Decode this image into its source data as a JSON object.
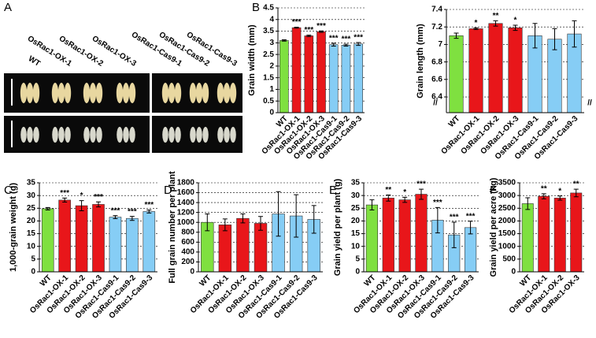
{
  "photo": {
    "panel": "A",
    "genotypes": [
      "WT",
      "OsRac1-OX-1",
      "OsRac1-OX-2",
      "OsRac1-OX-3",
      "OsRac1-Cas9-1",
      "OsRac1-Cas9-2",
      "OsRac1-Cas9-3"
    ]
  },
  "chart_data": [
    {
      "type": "bar",
      "panel": "B",
      "ylabel": "Grain width (mm)",
      "categories": [
        "WT",
        "OsRac1-OX-1",
        "OsRac1-OX-2",
        "OsRac1-OX-3",
        "OsRac1-Cas9-1",
        "OsRac1-Cas9-2",
        "OsRac1-Cas9-3"
      ],
      "values": [
        3.1,
        3.65,
        3.3,
        3.48,
        2.92,
        2.9,
        2.95
      ],
      "errors": [
        0.03,
        0.02,
        0.03,
        0.03,
        0.06,
        0.04,
        0.06
      ],
      "colors": [
        "#7fe040",
        "#e8161a",
        "#e8161a",
        "#e8161a",
        "#86cdf5",
        "#86cdf5",
        "#86cdf5"
      ],
      "annotations": [
        null,
        "***",
        "***",
        "***",
        "***",
        "***",
        "***"
      ],
      "ylim": [
        0,
        4.5
      ],
      "yticks": [
        0,
        0.5,
        1,
        1.5,
        2,
        2.5,
        3,
        3.5,
        4,
        4.5
      ],
      "grid": true
    },
    {
      "type": "bar",
      "ylabel": "Grain length (mm)",
      "break_mark": "//",
      "categories": [
        "WT",
        "OsRac1-OX-1",
        "OsRac1-OX-2",
        "OsRac1-OX-3",
        "OsRac1-Cas9-1",
        "OsRac1-Cas9-2",
        "OsRac1-Cas9-3"
      ],
      "values": [
        7.1,
        7.18,
        7.24,
        7.19,
        7.1,
        7.06,
        7.12
      ],
      "errors": [
        0.03,
        0.01,
        0.03,
        0.03,
        0.14,
        0.12,
        0.15
      ],
      "colors": [
        "#7fe040",
        "#e8161a",
        "#e8161a",
        "#e8161a",
        "#86cdf5",
        "#86cdf5",
        "#86cdf5"
      ],
      "annotations": [
        null,
        "*",
        "**",
        "*",
        null,
        null,
        null
      ],
      "ylim": [
        6.22,
        7.4
      ],
      "yticks": [
        6.4,
        6.6,
        6.8,
        {
          "value": 7,
          "label": "7"
        },
        7.2,
        7.4
      ],
      "grid": true
    },
    {
      "type": "bar",
      "panel": "C",
      "ylabel": "1,000-grain weight (g)",
      "categories": [
        "WT",
        "OsRac1-OX-1",
        "OsRac1-OX-2",
        "OsRac1-OX-3",
        "OsRac1-Cas9-1",
        "OsRac1-Cas9-2",
        "OsRac1-Cas9-3"
      ],
      "values": [
        24.8,
        28.2,
        26,
        26.5,
        21.5,
        21,
        23.7
      ],
      "errors": [
        0.5,
        0.8,
        2,
        1,
        0.6,
        0.8,
        0.6
      ],
      "colors": [
        "#7fe040",
        "#e8161a",
        "#e8161a",
        "#e8161a",
        "#86cdf5",
        "#86cdf5",
        "#86cdf5"
      ],
      "annotations": [
        null,
        "***",
        "*",
        "***",
        "***",
        "***",
        "***"
      ],
      "ylim": [
        0,
        35
      ],
      "yticks": [
        0,
        5,
        10,
        15,
        20,
        25,
        30,
        35
      ],
      "grid": true
    },
    {
      "type": "bar",
      "panel": "D",
      "ylabel": "Full grain number per plant",
      "categories": [
        "WT",
        "OsRac1-OX-1",
        "OsRac1-OX-2",
        "OsRac1-OX-3",
        "OsRac1-Cas9-1",
        "OsRac1-Cas9-2",
        "OsRac1-Cas9-3"
      ],
      "values": [
        1000,
        950,
        1080,
        980,
        1170,
        1130,
        1060
      ],
      "errors": [
        170,
        120,
        90,
        140,
        450,
        430,
        280
      ],
      "colors": [
        "#7fe040",
        "#e8161a",
        "#e8161a",
        "#e8161a",
        "#86cdf5",
        "#86cdf5",
        "#86cdf5"
      ],
      "annotations": [
        null,
        null,
        null,
        null,
        null,
        null,
        null
      ],
      "ylim": [
        0,
        1800
      ],
      "yticks": [
        0,
        200,
        400,
        600,
        800,
        1000,
        1200,
        1400,
        1600,
        1800
      ],
      "grid": true
    },
    {
      "type": "bar",
      "panel": "E",
      "ylabel": "Grain yield per plant (g)",
      "categories": [
        "WT",
        "OsRac1-OX-1",
        "OsRac1-OX-2",
        "OsRac1-OX-3",
        "OsRac1-Cas9-1",
        "OsRac1-Cas9-2",
        "OsRac1-Cas9-3"
      ],
      "values": [
        26.3,
        29,
        28.3,
        30.5,
        20.3,
        14.5,
        17.4
      ],
      "errors": [
        2,
        1.2,
        1,
        2,
        5,
        5,
        2.5
      ],
      "colors": [
        "#7fe040",
        "#e8161a",
        "#e8161a",
        "#e8161a",
        "#86cdf5",
        "#86cdf5",
        "#86cdf5"
      ],
      "annotations": [
        null,
        "**",
        "*",
        "***",
        "***",
        "***",
        "***"
      ],
      "ylim": [
        0,
        35
      ],
      "yticks": [
        0,
        5,
        10,
        15,
        20,
        25,
        30,
        35
      ],
      "grid": true
    },
    {
      "type": "bar",
      "panel": "F",
      "ylabel": "Grain yield per acre (kg)",
      "categories": [
        "WT",
        "OsRac1-OX-1",
        "OsRac1-OX-2",
        "OsRac1-OX-3"
      ],
      "values": [
        2680,
        2970,
        2900,
        3100
      ],
      "errors": [
        230,
        100,
        80,
        150
      ],
      "colors": [
        "#7fe040",
        "#e8161a",
        "#e8161a",
        "#e8161a"
      ],
      "annotations": [
        null,
        "**",
        "*",
        "**"
      ],
      "ylim": [
        0,
        3500
      ],
      "yticks": [
        0,
        500,
        1000,
        1500,
        2000,
        2500,
        3000,
        3500
      ],
      "grid": true
    }
  ]
}
